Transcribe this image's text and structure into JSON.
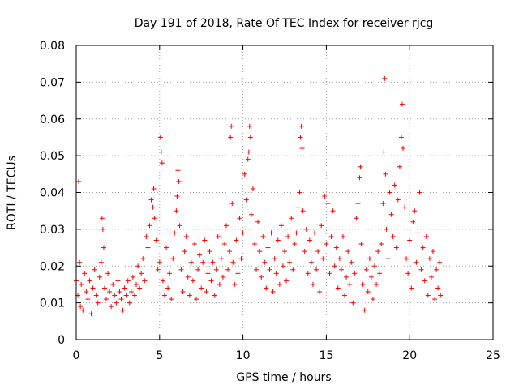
{
  "chart_data": {
    "type": "scatter",
    "title": "Day 191 of 2018, Rate Of TEC Index for receiver rjcg",
    "xlabel": "GPS time / hours",
    "ylabel": "ROTI / TECUs",
    "xlim": [
      0,
      25
    ],
    "ylim": [
      0,
      0.08
    ],
    "xticks": [
      0,
      5,
      10,
      15,
      20,
      25
    ],
    "xtick_labels": [
      "0",
      "5",
      "10",
      "15",
      "20",
      "25"
    ],
    "yticks": [
      0,
      0.01,
      0.02,
      0.03,
      0.04,
      0.05,
      0.06,
      0.07,
      0.08
    ],
    "ytick_labels": [
      "0",
      "0.01",
      "0.02",
      "0.03",
      "0.04",
      "0.05",
      "0.06",
      "0.07",
      "0.08"
    ],
    "grid": true,
    "marker": "+",
    "color": "#ff0000",
    "series": [
      {
        "name": "ROTI",
        "points": [
          [
            0.0,
            0.016
          ],
          [
            0.1,
            0.012
          ],
          [
            0.15,
            0.043
          ],
          [
            0.2,
            0.021
          ],
          [
            0.25,
            0.009
          ],
          [
            0.3,
            0.015
          ],
          [
            0.4,
            0.008
          ],
          [
            0.5,
            0.018
          ],
          [
            0.6,
            0.013
          ],
          [
            0.7,
            0.011
          ],
          [
            0.8,
            0.016
          ],
          [
            0.9,
            0.007
          ],
          [
            1.0,
            0.014
          ],
          [
            1.1,
            0.019
          ],
          [
            1.2,
            0.012
          ],
          [
            1.3,
            0.01
          ],
          [
            1.4,
            0.017
          ],
          [
            1.5,
            0.021
          ],
          [
            1.55,
            0.033
          ],
          [
            1.6,
            0.03
          ],
          [
            1.65,
            0.025
          ],
          [
            1.7,
            0.014
          ],
          [
            1.8,
            0.011
          ],
          [
            1.9,
            0.018
          ],
          [
            2.0,
            0.013
          ],
          [
            2.1,
            0.009
          ],
          [
            2.2,
            0.015
          ],
          [
            2.3,
            0.012
          ],
          [
            2.4,
            0.01
          ],
          [
            2.5,
            0.016
          ],
          [
            2.6,
            0.013
          ],
          [
            2.7,
            0.011
          ],
          [
            2.8,
            0.008
          ],
          [
            2.9,
            0.014
          ],
          [
            3.0,
            0.012
          ],
          [
            3.1,
            0.016
          ],
          [
            3.2,
            0.01
          ],
          [
            3.3,
            0.013
          ],
          [
            3.4,
            0.017
          ],
          [
            3.5,
            0.012
          ],
          [
            3.6,
            0.015
          ],
          [
            3.7,
            0.02
          ],
          [
            3.8,
            0.014
          ],
          [
            3.9,
            0.018
          ],
          [
            4.0,
            0.022
          ],
          [
            4.1,
            0.016
          ],
          [
            4.2,
            0.028
          ],
          [
            4.3,
            0.025
          ],
          [
            4.4,
            0.031
          ],
          [
            4.5,
            0.038
          ],
          [
            4.6,
            0.036
          ],
          [
            4.65,
            0.041
          ],
          [
            4.7,
            0.033
          ],
          [
            4.8,
            0.027
          ],
          [
            4.9,
            0.019
          ],
          [
            5.0,
            0.021
          ],
          [
            5.05,
            0.055
          ],
          [
            5.1,
            0.051
          ],
          [
            5.15,
            0.048
          ],
          [
            5.2,
            0.016
          ],
          [
            5.3,
            0.012
          ],
          [
            5.4,
            0.025
          ],
          [
            5.5,
            0.014
          ],
          [
            5.6,
            0.018
          ],
          [
            5.7,
            0.011
          ],
          [
            5.8,
            0.022
          ],
          [
            5.9,
            0.029
          ],
          [
            6.0,
            0.035
          ],
          [
            6.05,
            0.039
          ],
          [
            6.1,
            0.046
          ],
          [
            6.15,
            0.043
          ],
          [
            6.2,
            0.031
          ],
          [
            6.3,
            0.019
          ],
          [
            6.4,
            0.013
          ],
          [
            6.5,
            0.024
          ],
          [
            6.6,
            0.028
          ],
          [
            6.7,
            0.017
          ],
          [
            6.8,
            0.012
          ],
          [
            6.9,
            0.021
          ],
          [
            7.0,
            0.016
          ],
          [
            7.1,
            0.026
          ],
          [
            7.2,
            0.011
          ],
          [
            7.3,
            0.019
          ],
          [
            7.4,
            0.023
          ],
          [
            7.5,
            0.014
          ],
          [
            7.6,
            0.021
          ],
          [
            7.7,
            0.027
          ],
          [
            7.8,
            0.013
          ],
          [
            7.9,
            0.018
          ],
          [
            8.0,
            0.024
          ],
          [
            8.1,
            0.016
          ],
          [
            8.2,
            0.021
          ],
          [
            8.3,
            0.012
          ],
          [
            8.4,
            0.019
          ],
          [
            8.5,
            0.028
          ],
          [
            8.6,
            0.015
          ],
          [
            8.7,
            0.022
          ],
          [
            8.8,
            0.017
          ],
          [
            8.9,
            0.026
          ],
          [
            9.0,
            0.031
          ],
          [
            9.1,
            0.019
          ],
          [
            9.2,
            0.024
          ],
          [
            9.25,
            0.055
          ],
          [
            9.3,
            0.058
          ],
          [
            9.35,
            0.037
          ],
          [
            9.4,
            0.021
          ],
          [
            9.5,
            0.015
          ],
          [
            9.6,
            0.027
          ],
          [
            9.7,
            0.018
          ],
          [
            9.8,
            0.033
          ],
          [
            9.9,
            0.022
          ],
          [
            10.0,
            0.029
          ],
          [
            10.1,
            0.045
          ],
          [
            10.2,
            0.038
          ],
          [
            10.3,
            0.049
          ],
          [
            10.35,
            0.051
          ],
          [
            10.4,
            0.058
          ],
          [
            10.45,
            0.055
          ],
          [
            10.5,
            0.034
          ],
          [
            10.6,
            0.041
          ],
          [
            10.7,
            0.026
          ],
          [
            10.8,
            0.019
          ],
          [
            10.9,
            0.032
          ],
          [
            11.0,
            0.024
          ],
          [
            11.1,
            0.017
          ],
          [
            11.2,
            0.028
          ],
          [
            11.3,
            0.021
          ],
          [
            11.4,
            0.014
          ],
          [
            11.5,
            0.025
          ],
          [
            11.6,
            0.019
          ],
          [
            11.7,
            0.029
          ],
          [
            11.8,
            0.013
          ],
          [
            11.9,
            0.022
          ],
          [
            12.0,
            0.018
          ],
          [
            12.1,
            0.027
          ],
          [
            12.2,
            0.015
          ],
          [
            12.3,
            0.031
          ],
          [
            12.4,
            0.02
          ],
          [
            12.5,
            0.024
          ],
          [
            12.6,
            0.016
          ],
          [
            12.7,
            0.028
          ],
          [
            12.8,
            0.021
          ],
          [
            12.9,
            0.033
          ],
          [
            13.0,
            0.019
          ],
          [
            13.1,
            0.026
          ],
          [
            13.2,
            0.029
          ],
          [
            13.3,
            0.036
          ],
          [
            13.4,
            0.04
          ],
          [
            13.45,
            0.055
          ],
          [
            13.5,
            0.058
          ],
          [
            13.55,
            0.052
          ],
          [
            13.6,
            0.035
          ],
          [
            13.7,
            0.024
          ],
          [
            13.8,
            0.03
          ],
          [
            13.9,
            0.018
          ],
          [
            14.0,
            0.027
          ],
          [
            14.1,
            0.021
          ],
          [
            14.2,
            0.015
          ],
          [
            14.3,
            0.029
          ],
          [
            14.4,
            0.019
          ],
          [
            14.5,
            0.024
          ],
          [
            14.6,
            0.013
          ],
          [
            14.7,
            0.031
          ],
          [
            14.8,
            0.022
          ],
          [
            14.9,
            0.039
          ],
          [
            15.0,
            0.026
          ],
          [
            15.1,
            0.037
          ],
          [
            15.2,
            0.018
          ],
          [
            15.3,
            0.028
          ],
          [
            15.4,
            0.035
          ],
          [
            15.5,
            0.02
          ],
          [
            15.6,
            0.025
          ],
          [
            15.7,
            0.014
          ],
          [
            15.8,
            0.022
          ],
          [
            15.9,
            0.019
          ],
          [
            16.0,
            0.028
          ],
          [
            16.1,
            0.012
          ],
          [
            16.2,
            0.017
          ],
          [
            16.3,
            0.024
          ],
          [
            16.4,
            0.015
          ],
          [
            16.5,
            0.021
          ],
          [
            16.6,
            0.01
          ],
          [
            16.7,
            0.018
          ],
          [
            16.8,
            0.033
          ],
          [
            16.9,
            0.037
          ],
          [
            17.0,
            0.044
          ],
          [
            17.05,
            0.047
          ],
          [
            17.1,
            0.026
          ],
          [
            17.2,
            0.015
          ],
          [
            17.3,
            0.008
          ],
          [
            17.4,
            0.019
          ],
          [
            17.5,
            0.013
          ],
          [
            17.6,
            0.022
          ],
          [
            17.7,
            0.017
          ],
          [
            17.8,
            0.011
          ],
          [
            17.9,
            0.02
          ],
          [
            18.0,
            0.015
          ],
          [
            18.1,
            0.024
          ],
          [
            18.2,
            0.018
          ],
          [
            18.3,
            0.026
          ],
          [
            18.4,
            0.037
          ],
          [
            18.45,
            0.051
          ],
          [
            18.5,
            0.071
          ],
          [
            18.55,
            0.045
          ],
          [
            18.6,
            0.03
          ],
          [
            18.7,
            0.022
          ],
          [
            18.8,
            0.04
          ],
          [
            18.9,
            0.034
          ],
          [
            19.0,
            0.028
          ],
          [
            19.1,
            0.042
          ],
          [
            19.2,
            0.025
          ],
          [
            19.3,
            0.038
          ],
          [
            19.4,
            0.047
          ],
          [
            19.5,
            0.055
          ],
          [
            19.55,
            0.064
          ],
          [
            19.6,
            0.052
          ],
          [
            19.7,
            0.036
          ],
          [
            19.8,
            0.022
          ],
          [
            19.9,
            0.018
          ],
          [
            20.0,
            0.027
          ],
          [
            20.1,
            0.014
          ],
          [
            20.2,
            0.032
          ],
          [
            20.3,
            0.035
          ],
          [
            20.4,
            0.021
          ],
          [
            20.5,
            0.029
          ],
          [
            20.6,
            0.04
          ],
          [
            20.7,
            0.019
          ],
          [
            20.8,
            0.025
          ],
          [
            20.9,
            0.016
          ],
          [
            21.0,
            0.028
          ],
          [
            21.1,
            0.012
          ],
          [
            21.2,
            0.022
          ],
          [
            21.3,
            0.017
          ],
          [
            21.4,
            0.024
          ],
          [
            21.5,
            0.011
          ],
          [
            21.6,
            0.019
          ],
          [
            21.7,
            0.014
          ],
          [
            21.8,
            0.021
          ],
          [
            21.85,
            0.012
          ]
        ]
      }
    ]
  }
}
